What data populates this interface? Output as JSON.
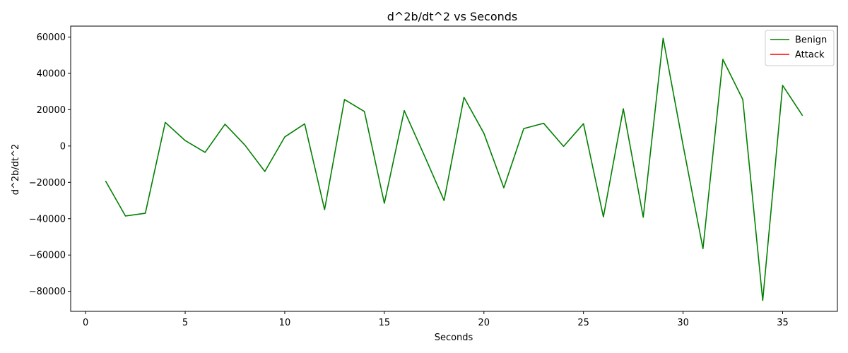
{
  "chart_data": {
    "type": "line",
    "title": "d^2b/dt^2 vs Seconds",
    "xlabel": "Seconds",
    "ylabel": "d^2b/dt^2",
    "xlim": [
      -0.75,
      37.75
    ],
    "ylim": [
      -91000,
      66000
    ],
    "x_ticks": [
      0,
      5,
      10,
      15,
      20,
      25,
      30,
      35
    ],
    "x_tick_labels": [
      "0",
      "5",
      "10",
      "15",
      "20",
      "25",
      "30",
      "35"
    ],
    "y_ticks": [
      -80000,
      -60000,
      -40000,
      -20000,
      0,
      20000,
      40000,
      60000
    ],
    "y_tick_labels": [
      "−80000",
      "−60000",
      "−40000",
      "−20000",
      "0",
      "20000",
      "40000",
      "60000"
    ],
    "grid": false,
    "legend_position": "top-right",
    "series": [
      {
        "name": "Benign",
        "color": "#008000",
        "x": [
          1,
          2,
          3,
          4,
          5,
          6,
          7,
          8,
          9,
          10,
          11,
          12,
          13,
          14,
          15,
          16,
          17,
          18,
          19,
          20,
          21,
          22,
          23,
          24,
          25,
          26,
          27,
          28,
          29,
          30,
          31,
          32,
          33,
          34,
          35,
          36
        ],
        "y": [
          -19200,
          -38500,
          -37000,
          13000,
          3000,
          -3500,
          12000,
          500,
          -14000,
          5000,
          12200,
          -35000,
          25600,
          19000,
          -31500,
          19500,
          -5000,
          -30000,
          26800,
          7000,
          -23000,
          9600,
          12500,
          -200,
          12300,
          -39000,
          20500,
          -39200,
          59300,
          500,
          -56500,
          47700,
          25600,
          -85000,
          33400,
          16700
        ]
      },
      {
        "name": "Attack",
        "color": "#ff0000",
        "x": [],
        "y": []
      }
    ]
  }
}
